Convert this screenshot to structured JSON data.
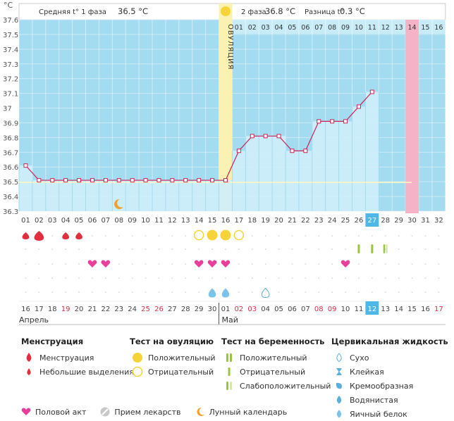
{
  "chart_data": {
    "type": "line",
    "unit": "°C",
    "y_ticks": [
      "37.6",
      "37.5",
      "37.4",
      "37.3",
      "37.2",
      "37.1",
      "37",
      "36.9",
      "36.8",
      "36.7",
      "36.6",
      "36.5",
      "36.4",
      "36.3"
    ],
    "ylim": [
      36.3,
      37.6
    ],
    "header": {
      "phase1_label": "Средняя t° 1 фаза",
      "phase1_value": "36.5 °C",
      "phase2_label": "2 фаза",
      "phase2_value": "36.8 °C",
      "diff_label": "Разница t°",
      "diff_value": "0.3 °C"
    },
    "phase2_day_labels": [
      "01",
      "02",
      "03",
      "04",
      "05",
      "06",
      "07",
      "08",
      "09",
      "10",
      "11",
      "12",
      "13",
      "14",
      "15",
      "16"
    ],
    "phase2_highlight_label": "14",
    "ovulation_label": "ОВУЛЯЦИЯ",
    "cycle_days": [
      "01",
      "02",
      "03",
      "04",
      "05",
      "06",
      "07",
      "08",
      "09",
      "10",
      "11",
      "12",
      "13",
      "14",
      "15",
      "16",
      "17",
      "18",
      "19",
      "20",
      "21",
      "22",
      "23",
      "24",
      "25",
      "26",
      "27",
      "28",
      "29",
      "30",
      "31",
      "32"
    ],
    "today_cycle_day": "27",
    "cycle_day_30_highlight": "30",
    "temperatures": [
      36.61,
      36.51,
      36.51,
      36.51,
      36.51,
      36.51,
      36.51,
      36.51,
      36.51,
      36.51,
      36.51,
      36.51,
      36.51,
      36.51,
      36.51,
      36.51,
      36.71,
      36.81,
      36.81,
      36.81,
      36.71,
      36.71,
      36.91,
      36.91,
      36.91,
      37.01,
      37.11
    ],
    "coverline": 36.5,
    "calendar_dates": [
      "16",
      "17",
      "18",
      "19",
      "20",
      "21",
      "22",
      "23",
      "24",
      "25",
      "26",
      "27",
      "28",
      "29",
      "30",
      "01",
      "02",
      "03",
      "04",
      "05",
      "06",
      "07",
      "08",
      "09",
      "10",
      "11",
      "12",
      "13",
      "14",
      "15",
      "16",
      "17"
    ],
    "red_date_indices": [
      3,
      9,
      10,
      16,
      17,
      22,
      23,
      31
    ],
    "today_date": "12",
    "month1": "Апрель",
    "month2": "Май",
    "menstruation_big": [
      2
    ],
    "menstruation_small": [
      1,
      4,
      5
    ],
    "moon_day": 8,
    "ovulation_test_positive": [
      15,
      16
    ],
    "ovulation_test_negative": [
      14,
      17
    ],
    "pregnancy_test": {
      "positive": [
        26,
        27
      ],
      "weak": [
        28
      ]
    },
    "intercourse": [
      6,
      7,
      14,
      15,
      16,
      25
    ],
    "cervical_egg_white": [
      15,
      16
    ],
    "cervical_dry": [
      19
    ]
  },
  "legend": {
    "menstruation": {
      "title": "Менструация",
      "items": [
        "Менструация",
        "Небольшие выделения"
      ]
    },
    "ovulation_test": {
      "title": "Тест на овуляцию",
      "items": [
        "Положительный",
        "Отрицательный"
      ]
    },
    "pregnancy_test": {
      "title": "Тест на беременность",
      "items": [
        "Положительный",
        "Отрицательный",
        "Слабоположительный"
      ]
    },
    "cervical": {
      "title": "Цервикальная жидкость",
      "items": [
        "Сухо",
        "Клейкая",
        "Кремообразная",
        "Водянистая",
        "Яичный белок"
      ]
    },
    "bottom": [
      "Половой акт",
      "Прием лекарств",
      "Лунный календарь"
    ]
  },
  "colors": {
    "chart_bg": "#a3dbf0",
    "fill": "#cfeefb",
    "line": "#cc2255",
    "ovulation": "#fbf1b0",
    "today": "#4db8e8",
    "pink": "#f5b3c8",
    "heart": "#e8409a",
    "drop_red": "#e03040",
    "yellow": "#f7d33a",
    "green": "#9ac43c"
  }
}
